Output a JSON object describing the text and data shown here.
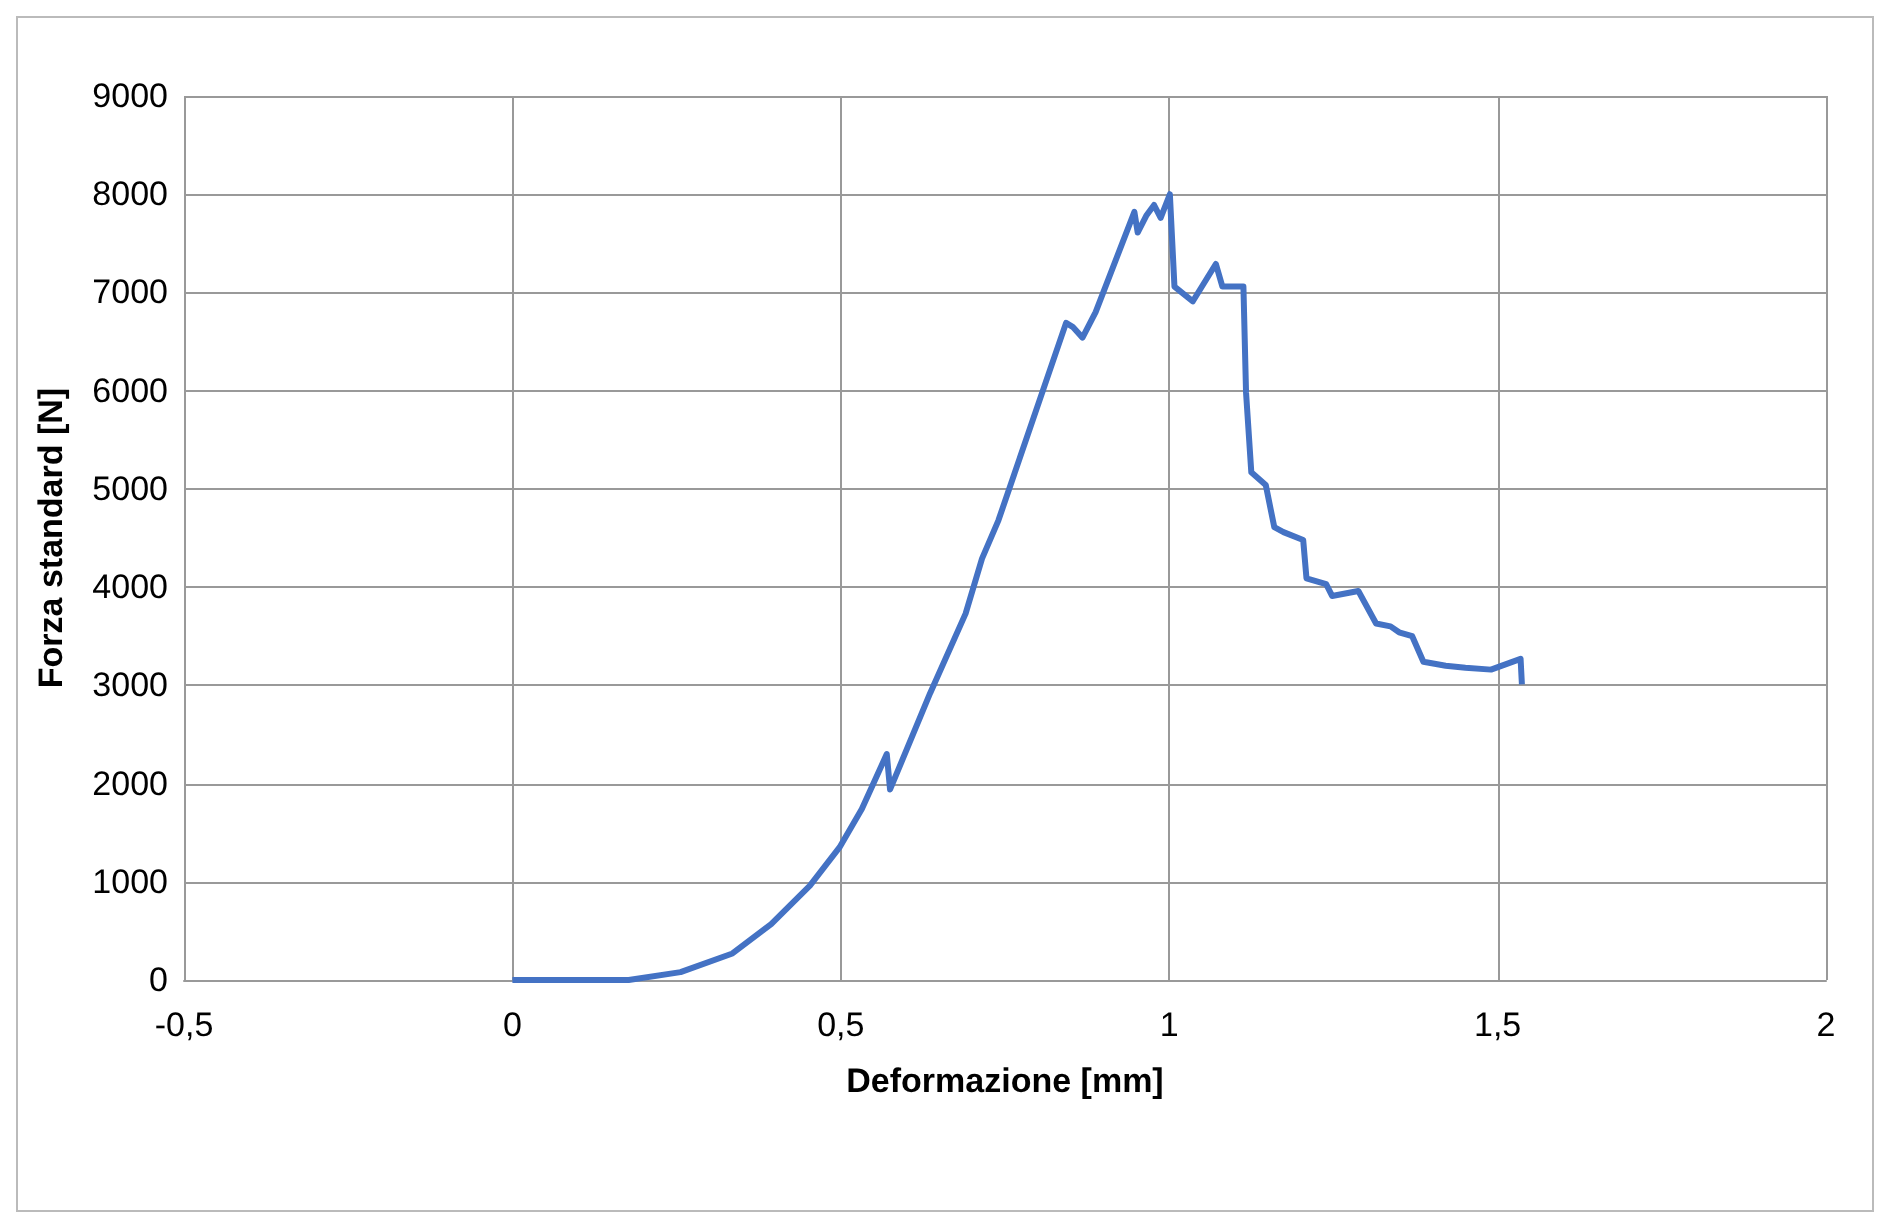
{
  "chart_data": {
    "type": "line",
    "xlabel": "Deformazione [mm]",
    "ylabel": "Forza standard [N]",
    "x": [
      0,
      0.177,
      0.256,
      0.335,
      0.394,
      0.453,
      0.498,
      0.532,
      0.57,
      0.575,
      0.636,
      0.69,
      0.715,
      0.74,
      0.843,
      0.853,
      0.868,
      0.888,
      0.947,
      0.952,
      0.965,
      0.977,
      0.987,
      1.001,
      1.008,
      1.036,
      1.071,
      1.081,
      1.113,
      1.117,
      1.125,
      1.147,
      1.16,
      1.174,
      1.204,
      1.209,
      1.239,
      1.248,
      1.288,
      1.315,
      1.337,
      1.35,
      1.37,
      1.387,
      1.421,
      1.451,
      1.49,
      1.535,
      1.537
    ],
    "series": [
      {
        "color": "#4472c4",
        "values": [
          0,
          0,
          80,
          270,
          570,
          960,
          1350,
          1740,
          2300,
          1940,
          2920,
          3730,
          4290,
          4680,
          6690,
          6650,
          6540,
          6800,
          7820,
          7610,
          7780,
          7890,
          7760,
          8000,
          7060,
          6910,
          7290,
          7060,
          7060,
          5980,
          5170,
          5040,
          4610,
          4560,
          4480,
          4090,
          4030,
          3910,
          3960,
          3630,
          3600,
          3540,
          3500,
          3240,
          3200,
          3180,
          3160,
          3270,
          3010
        ]
      }
    ],
    "xlim": [
      -0.5,
      2
    ],
    "xticks": [
      {
        "value": -0.5,
        "label": "-0,5"
      },
      0,
      {
        "value": 0.5,
        "label": "0,5"
      },
      1,
      {
        "value": 1.5,
        "label": "1,5"
      },
      2
    ],
    "ylim": [
      0,
      9000
    ],
    "yticks": [
      0,
      1000,
      2000,
      3000,
      4000,
      5000,
      6000,
      7000,
      8000,
      9000
    ],
    "grid": true,
    "marker": "none",
    "line_style": "solid"
  }
}
